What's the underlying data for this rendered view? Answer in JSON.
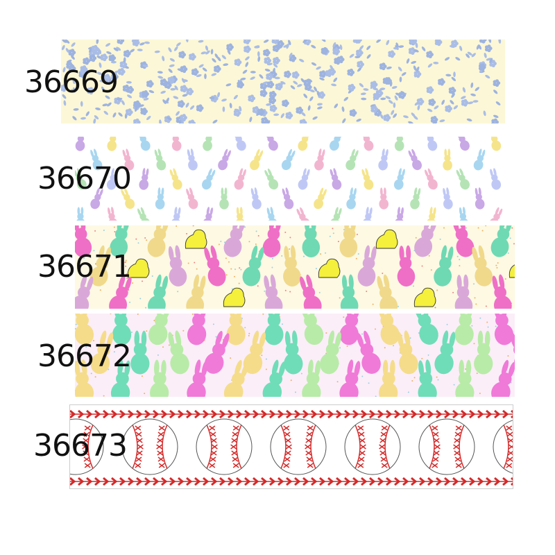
{
  "ribbons": [
    {
      "code": "36669",
      "pattern": "blue-floral",
      "background": "#fcf7d6",
      "colors": [
        "#a9bde6",
        "#9db3e0"
      ]
    },
    {
      "code": "36670",
      "pattern": "pastel-bunnies",
      "background": "#ffffff",
      "colors": [
        "#c9a8e6",
        "#f5e48a",
        "#a8d6f0",
        "#f2b5cf",
        "#b5e3b5",
        "#bfc8f5"
      ]
    },
    {
      "code": "36671",
      "pattern": "peeps-bunnies-chicks",
      "background": "#fdf9e3",
      "colors": [
        "#ef6fc7",
        "#6fd9b4",
        "#f0d98a",
        "#f4f03c",
        "#d9a8d9"
      ]
    },
    {
      "code": "36672",
      "pattern": "pastel-bunnies",
      "background": "#fbeef8",
      "colors": [
        "#f5dc8a",
        "#6fddb8",
        "#b8eba8",
        "#f07ad8"
      ]
    },
    {
      "code": "36673",
      "pattern": "baseball",
      "background": "#ffffff",
      "colors": [
        "#d42a2a",
        "#555555"
      ]
    }
  ]
}
